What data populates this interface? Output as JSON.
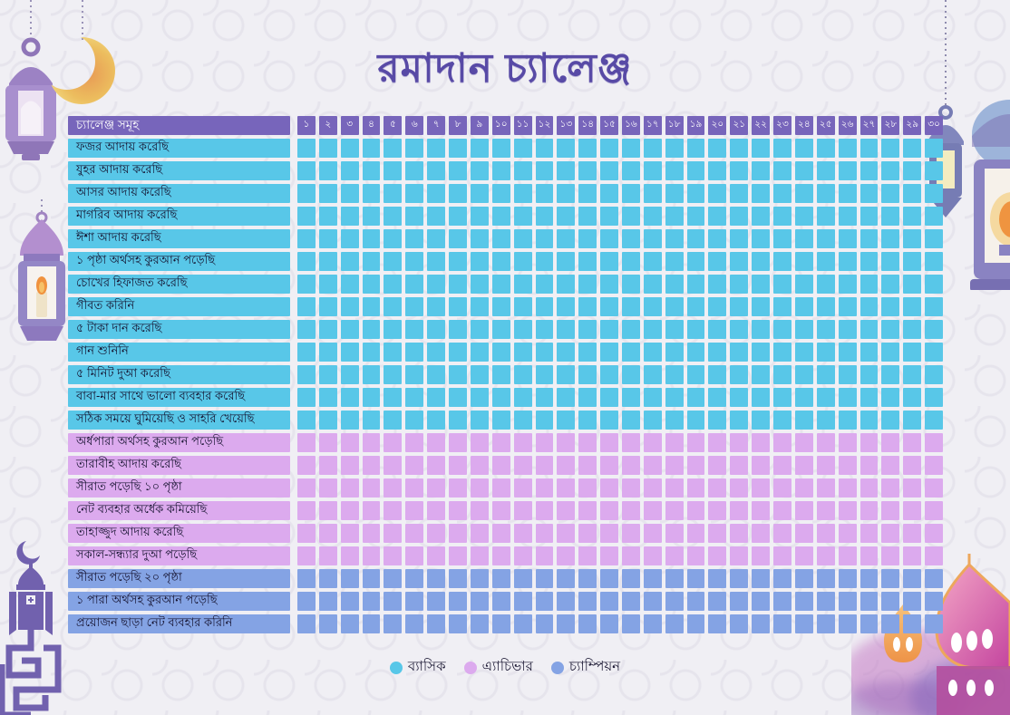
{
  "title": "রমাদান চ্যালেঞ্জ",
  "table": {
    "header_label": "চ্যালেঞ্জ সমূহ",
    "days": [
      "১",
      "২",
      "৩",
      "৪",
      "৫",
      "৬",
      "৭",
      "৮",
      "৯",
      "১০",
      "১১",
      "১২",
      "১৩",
      "১৪",
      "১৫",
      "১৬",
      "১৭",
      "১৮",
      "১৯",
      "২০",
      "২১",
      "২২",
      "২৩",
      "২৪",
      "২৫",
      "২৬",
      "২৭",
      "২৮",
      "২৯",
      "৩০"
    ],
    "rows": [
      {
        "label": "ফজর আদায় করেছি",
        "tier": "basic"
      },
      {
        "label": "যুহর আদায় করেছি",
        "tier": "basic"
      },
      {
        "label": "আসর আদায় করেছি",
        "tier": "basic"
      },
      {
        "label": "মাগরিব আদায় করেছি",
        "tier": "basic"
      },
      {
        "label": "ঈশা আদায় করেছি",
        "tier": "basic"
      },
      {
        "label": "১ পৃষ্ঠা অর্থসহ কুরআন পড়েছি",
        "tier": "basic"
      },
      {
        "label": "চোখের হিফাজত করেছি",
        "tier": "basic"
      },
      {
        "label": "গীবত করিনি",
        "tier": "basic"
      },
      {
        "label": "৫ টাকা দান করেছি",
        "tier": "basic"
      },
      {
        "label": "গান শুনিনি",
        "tier": "basic"
      },
      {
        "label": "৫ মিনিট দুআ করেছি",
        "tier": "basic"
      },
      {
        "label": "বাবা-মার সাথে ভালো ব্যবহার করেছি",
        "tier": "basic"
      },
      {
        "label": "সঠিক সময়ে ঘুমিয়েছি ও সাহরি খেয়েছি",
        "tier": "basic"
      },
      {
        "label": "অর্ধপারা অর্থসহ কুরআন পড়েছি",
        "tier": "achiever"
      },
      {
        "label": "তারাবীহ আদায় করেছি",
        "tier": "achiever"
      },
      {
        "label": "সীরাত পড়েছি ১০ পৃষ্ঠা",
        "tier": "achiever"
      },
      {
        "label": "নেট ব্যবহার অর্ধেক কমিয়েছি",
        "tier": "achiever"
      },
      {
        "label": "তাহাজ্জুদ আদায় করেছি",
        "tier": "achiever"
      },
      {
        "label": "সকাল-সন্ধ্যার দুআ পড়েছি",
        "tier": "achiever"
      },
      {
        "label": "সীরাত পড়েছি ২০ পৃষ্ঠা",
        "tier": "champion"
      },
      {
        "label": "১ পারা অর্থসহ কুরআন পড়েছি",
        "tier": "champion"
      },
      {
        "label": "প্রয়োজন ছাড়া নেট ব্যবহার করিনি",
        "tier": "champion"
      }
    ]
  },
  "legend": {
    "items": [
      {
        "label": "ব্যাসিক",
        "tier": "basic",
        "color": "#58c7e8"
      },
      {
        "label": "এ্যাচিভার",
        "tier": "achiever",
        "color": "#dcaaee"
      },
      {
        "label": "চ্যাম্পিয়ন",
        "tier": "champion",
        "color": "#84a3e4"
      }
    ]
  },
  "colors": {
    "header_purple": "#7765bb",
    "basic_cyan": "#58c7e8",
    "achiever_lavender": "#dcaaee",
    "champion_blue": "#84a3e4",
    "title_purple": "#584aa6",
    "label_text": "#14112e",
    "background": "#f0eff4"
  },
  "decorations": {
    "top_left": [
      "hanging-lantern-icon",
      "crescent-moon-icon"
    ],
    "left": [
      "candle-lantern-icon"
    ],
    "bottom_left": [
      "minaret-art-icon"
    ],
    "top_right": [
      "small-lantern-icon",
      "large-lantern-icon"
    ],
    "bottom_right": [
      "mosque-art-icon"
    ]
  }
}
